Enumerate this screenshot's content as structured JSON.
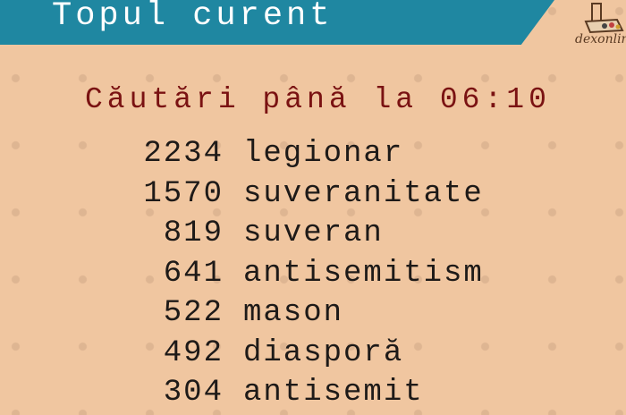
{
  "header": {
    "title": "Topul curent",
    "logo_text": "dexonline"
  },
  "colors": {
    "banner": "#1f87a1",
    "background": "#f0c6a0",
    "subtitle": "#7a1212"
  },
  "subtitle": "Căutări până la 06:10",
  "list": [
    {
      "count": "2234",
      "term": "legionar"
    },
    {
      "count": "1570",
      "term": "suveranitate"
    },
    {
      "count": "819",
      "term": "suveran"
    },
    {
      "count": "641",
      "term": "antisemitism"
    },
    {
      "count": "522",
      "term": "mason"
    },
    {
      "count": "492",
      "term": "diasporă"
    },
    {
      "count": "304",
      "term": "antisemit"
    }
  ]
}
